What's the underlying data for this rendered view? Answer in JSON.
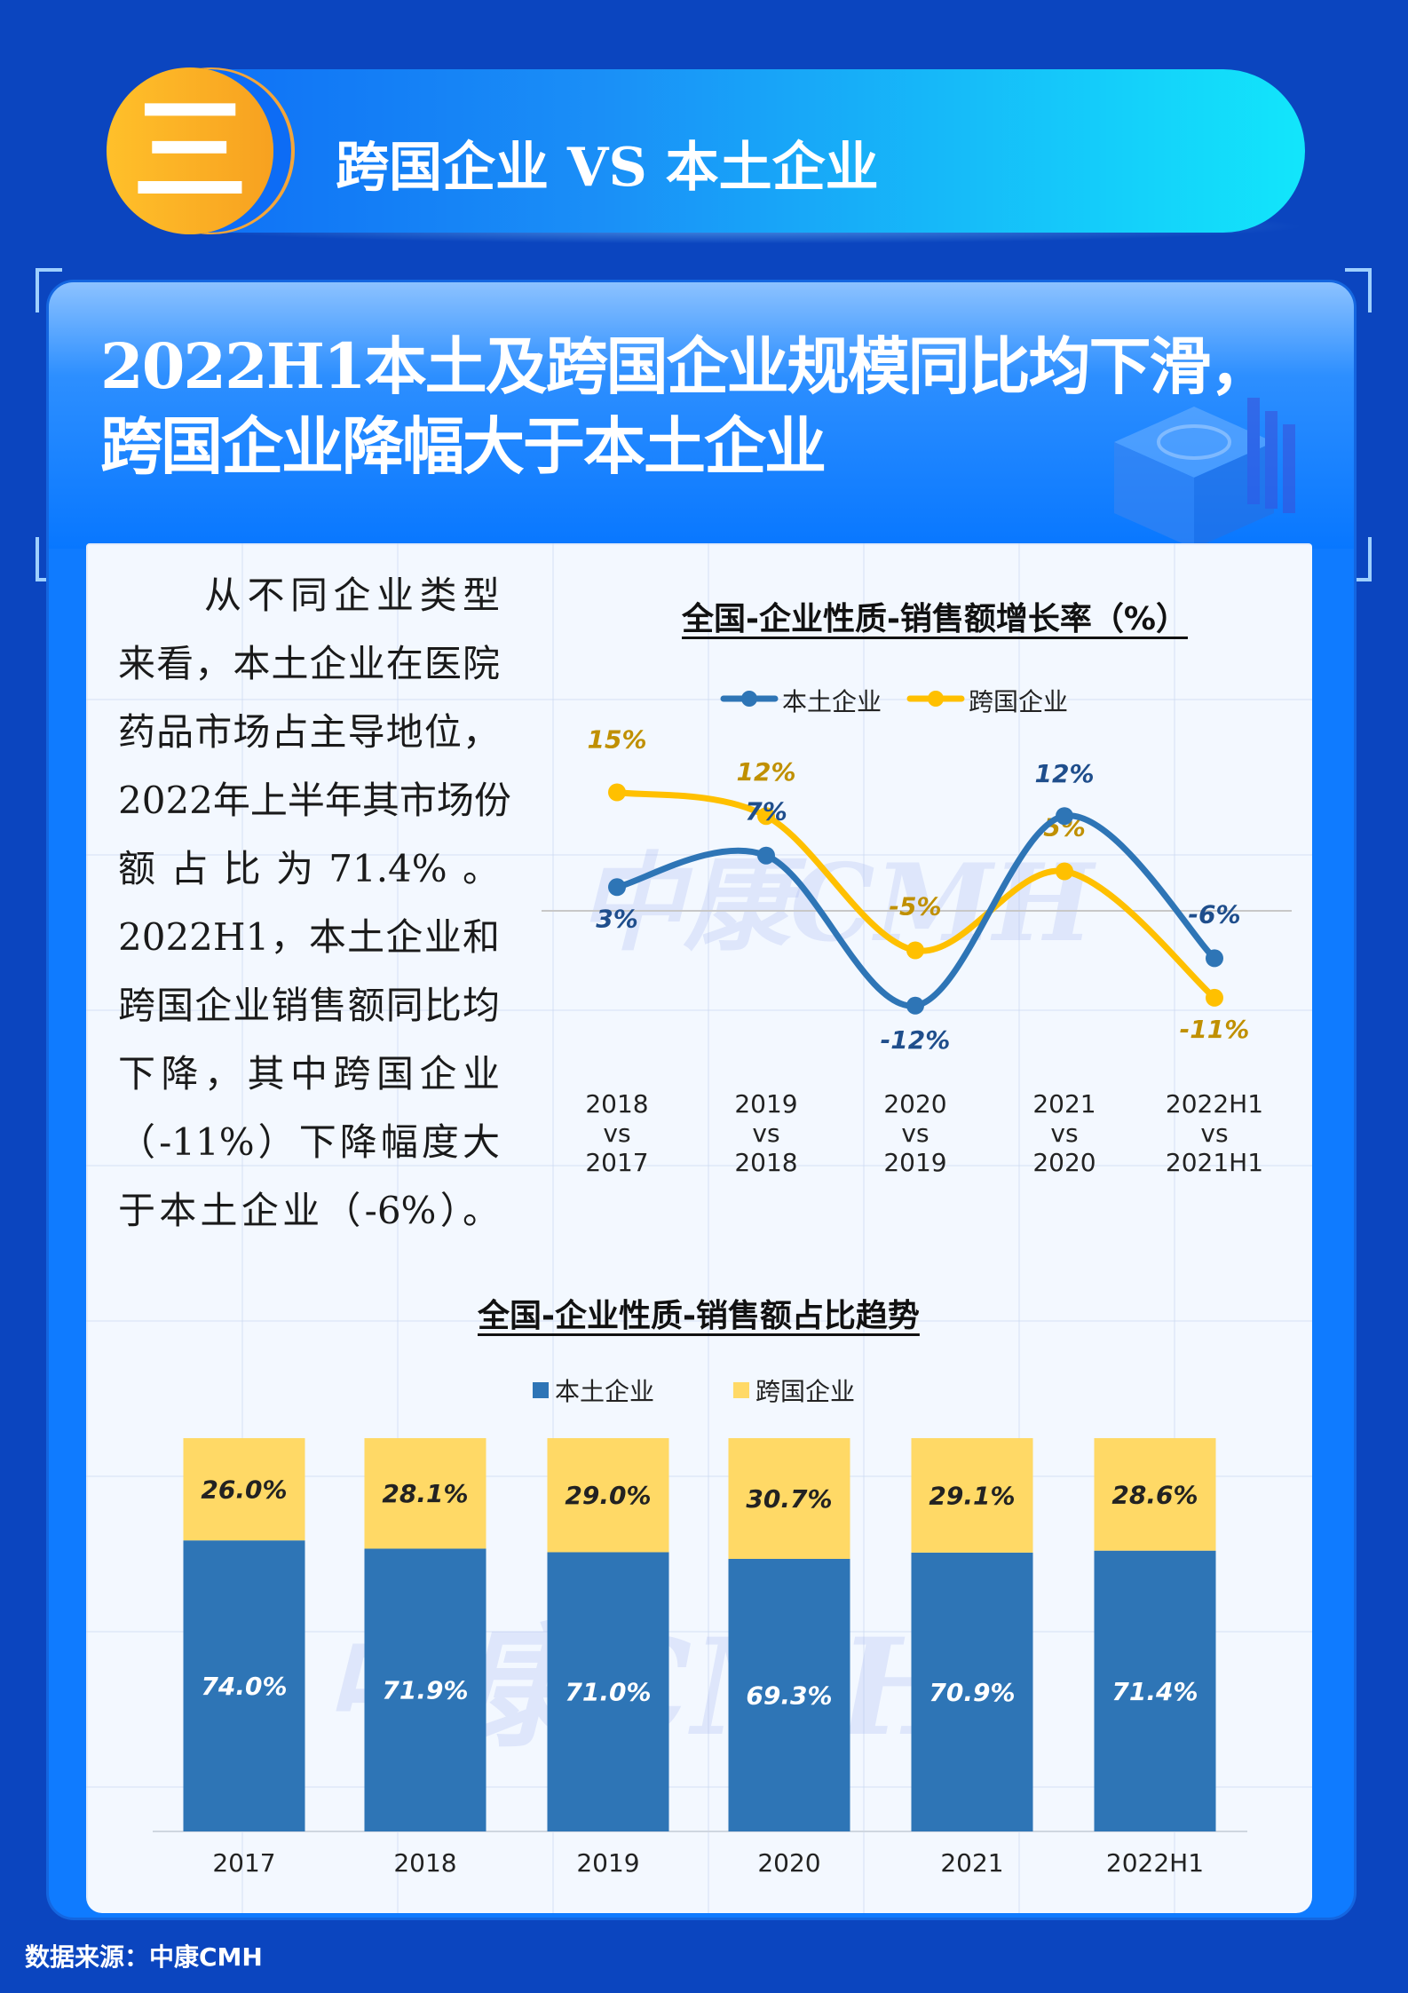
{
  "section": {
    "badge": "三",
    "title": "跨国企业 VS 本土企业"
  },
  "headline": {
    "line1": "2022H1本土及跨国企业规模同比均下滑，",
    "line2": "跨国企业降幅大于本土企业"
  },
  "paragraph": [
    "　　从不同企业类型",
    "来看，本土企业在医院",
    "药品市场占主导地位，",
    "2022年上半年其市场份",
    "额占比为71.4%。",
    "2022H1，本土企业和",
    "跨国企业销售额同比均",
    "下降，其中跨国企业",
    "（-11%）下降幅度大",
    "于本土企业（-6%）。"
  ],
  "watermark": "中康CMH",
  "footer": "数据来源：中康CMH",
  "colors": {
    "local": "#2e75b6",
    "multinational": "#ffc000",
    "local_label": "#1f4e8c",
    "multinational_label": "#c09000",
    "bar_local": "#2e75b6",
    "bar_multi": "#ffd966",
    "background": "#0b45bf"
  },
  "chart_data": [
    {
      "type": "line",
      "title": "全国-企业性质-销售额增长率（%）",
      "categories": [
        [
          "2018",
          "vs",
          "2017"
        ],
        [
          "2019",
          "vs",
          "2018"
        ],
        [
          "2020",
          "vs",
          "2019"
        ],
        [
          "2021",
          "vs",
          "2020"
        ],
        [
          "2022H1",
          "vs",
          "2021H1"
        ]
      ],
      "series": [
        {
          "name": "本土企业",
          "values": [
            3,
            7,
            -12,
            12,
            -6
          ],
          "labels": [
            "3%",
            "7%",
            "-12%",
            "12%",
            "-6%"
          ]
        },
        {
          "name": "跨国企业",
          "values": [
            15,
            12,
            -5,
            5,
            -11
          ],
          "labels": [
            "15%",
            "12%",
            "-5%",
            "5%",
            "-11%"
          ]
        }
      ],
      "legend": "top",
      "grid": false,
      "smooth": true
    },
    {
      "type": "bar",
      "stacked": true,
      "title": "全国-企业性质-销售额占比趋势",
      "categories": [
        "2017",
        "2018",
        "2019",
        "2020",
        "2021",
        "2022H1"
      ],
      "series": [
        {
          "name": "本土企业",
          "values": [
            74.0,
            71.9,
            71.0,
            69.3,
            70.9,
            71.4
          ],
          "labels": [
            "74.0%",
            "71.9%",
            "71.0%",
            "69.3%",
            "70.9%",
            "71.4%"
          ]
        },
        {
          "name": "跨国企业",
          "values": [
            26.0,
            28.1,
            29.0,
            30.7,
            29.1,
            28.6
          ],
          "labels": [
            "26.0%",
            "28.1%",
            "29.0%",
            "30.7%",
            "29.1%",
            "28.6%"
          ]
        }
      ],
      "ylim": [
        0,
        100
      ],
      "legend": "top",
      "grid": false
    }
  ]
}
